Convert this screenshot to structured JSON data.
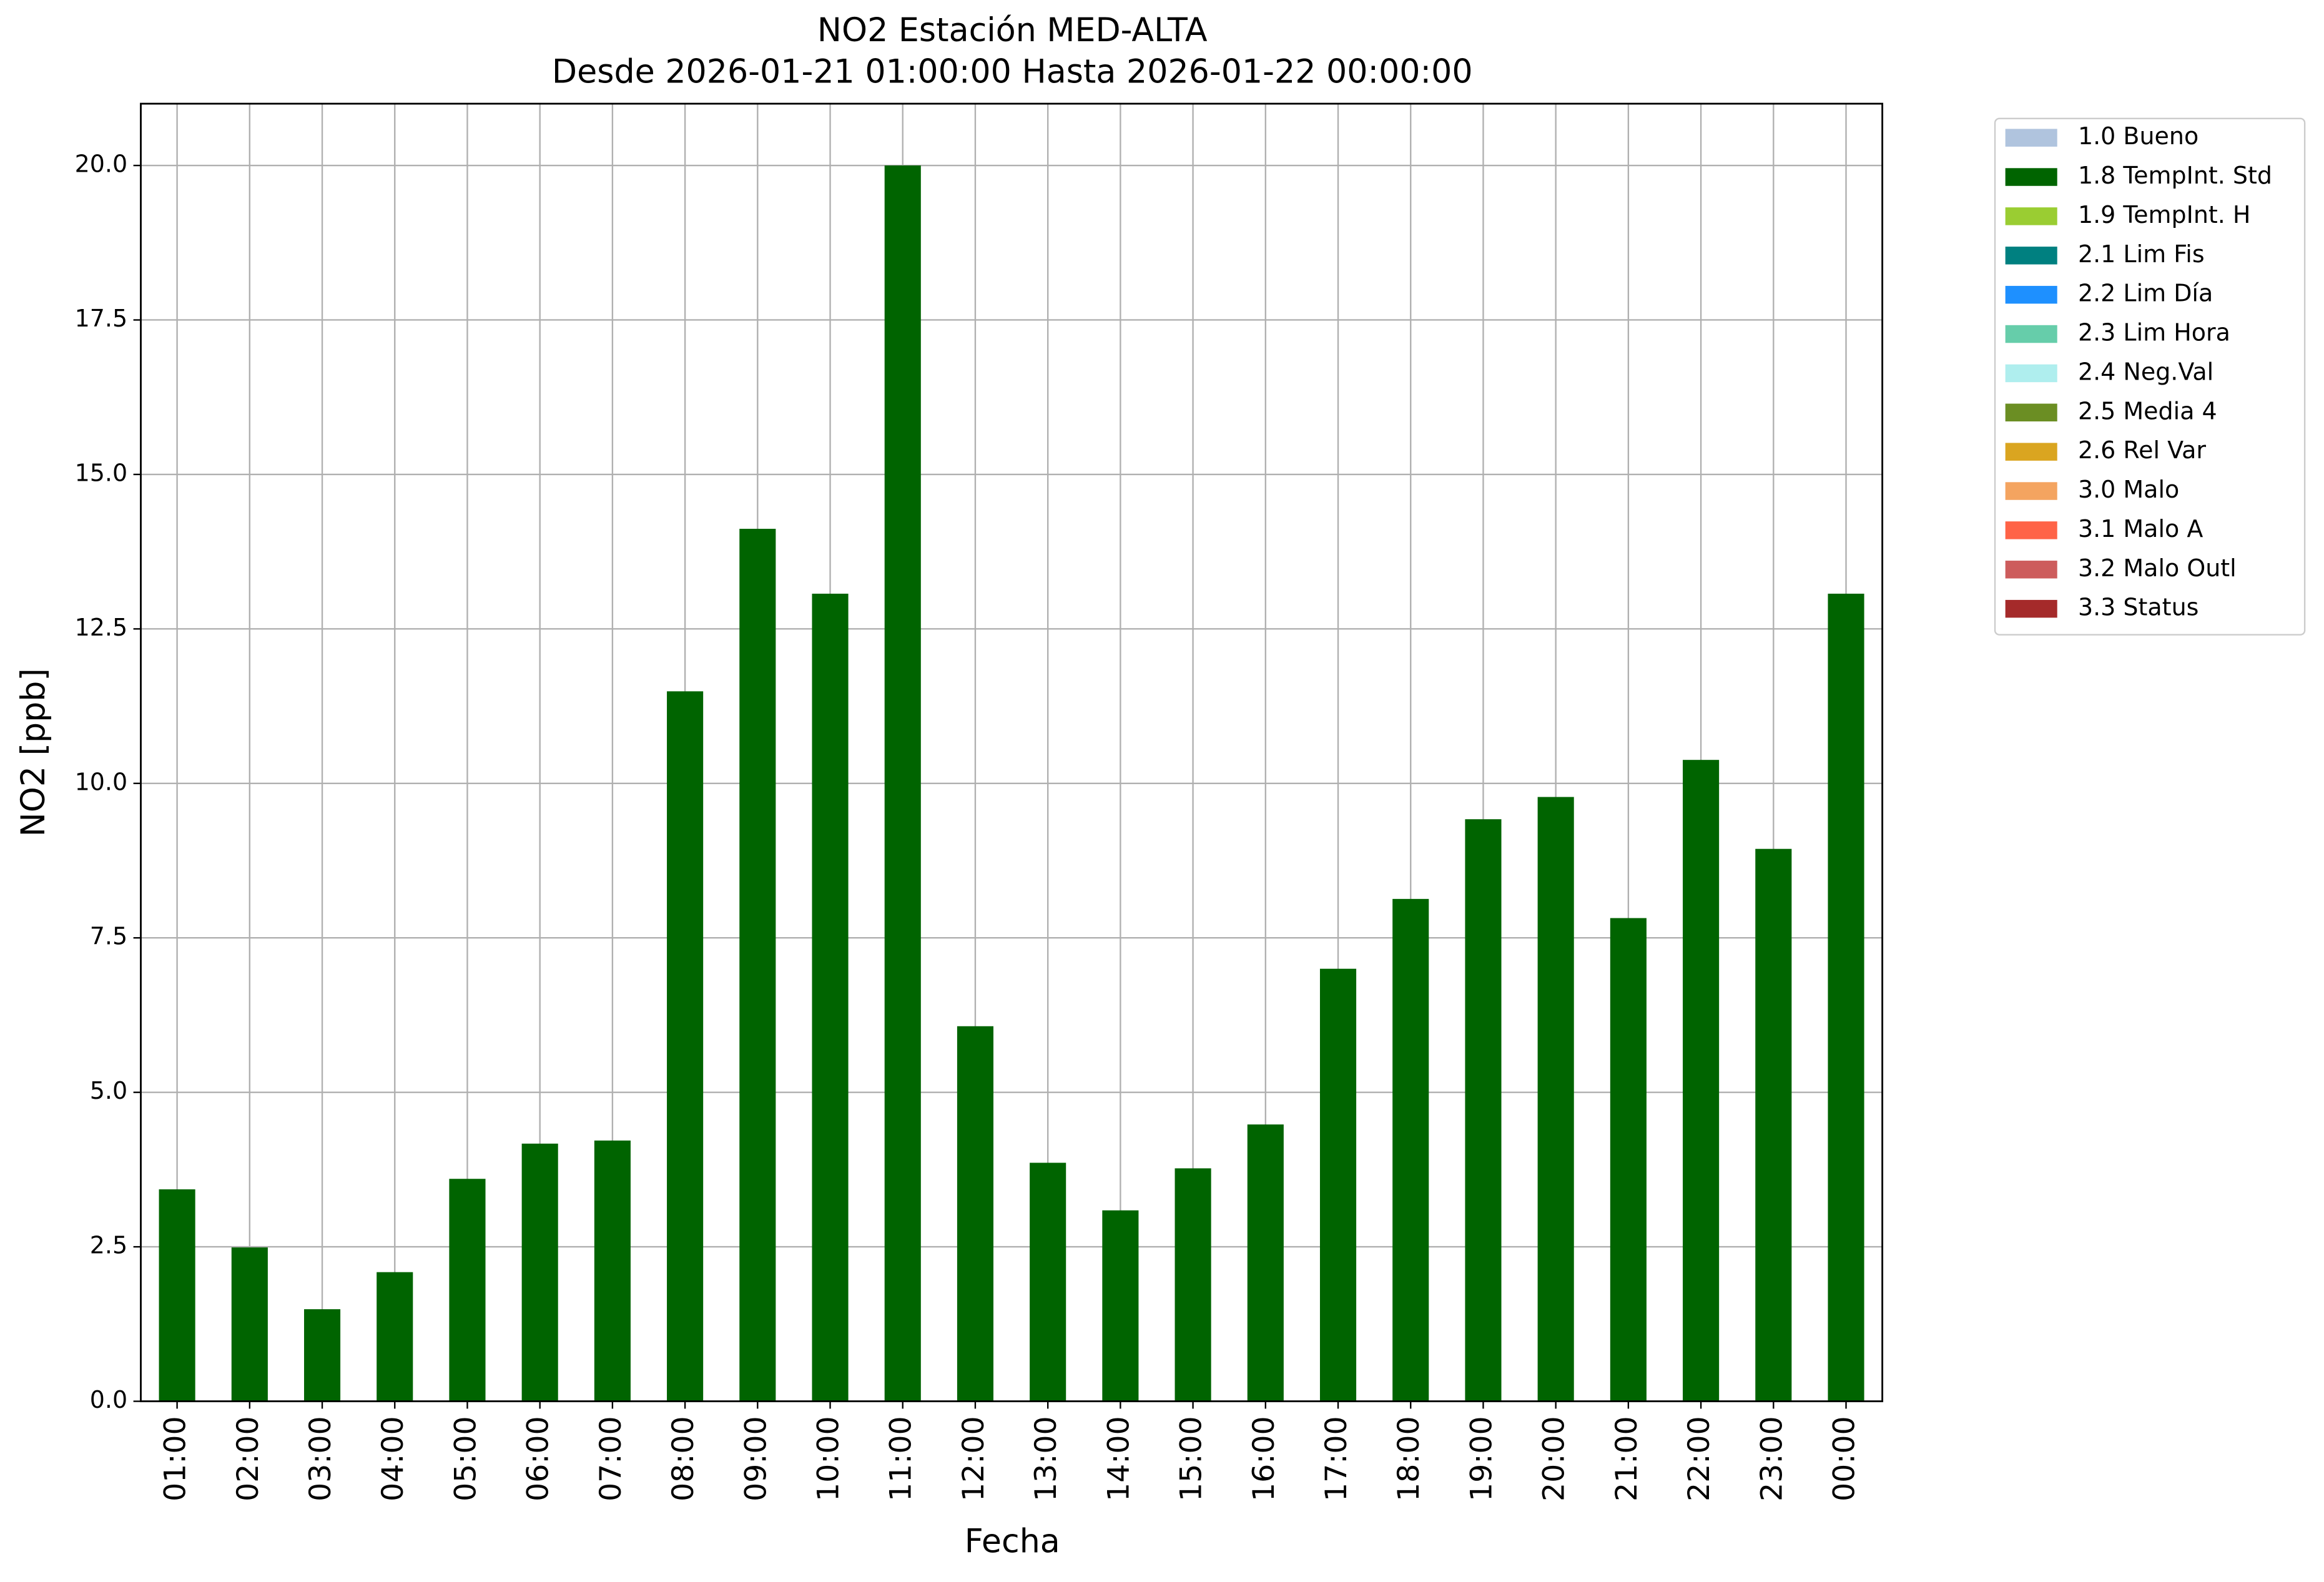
{
  "chart_data": {
    "type": "bar",
    "title": "NO2 Estación MED-ALTA",
    "subtitle": "Desde 2026-01-21 01:00:00 Hasta 2026-01-22 00:00:00",
    "x_label": "Fecha",
    "y_label": "NO2 [ppb]",
    "categories": [
      "01:00",
      "02:00",
      "03:00",
      "04:00",
      "05:00",
      "06:00",
      "07:00",
      "08:00",
      "09:00",
      "10:00",
      "11:00",
      "12:00",
      "13:00",
      "14:00",
      "15:00",
      "16:00",
      "17:00",
      "18:00",
      "19:00",
      "20:00",
      "21:00",
      "22:00",
      "23:00",
      "00:00"
    ],
    "series": [
      {
        "name": "1.0 Bueno",
        "color": "#b0c4de"
      },
      {
        "name": "1.8 TempInt. Std",
        "color": "#006400",
        "values": [
          3.43,
          2.49,
          1.49,
          2.09,
          3.6,
          4.17,
          4.22,
          11.49,
          14.12,
          13.07,
          20.0,
          6.07,
          3.86,
          3.09,
          3.77,
          4.48,
          7.0,
          8.13,
          9.42,
          9.78,
          7.82,
          10.38,
          8.94,
          13.07
        ]
      },
      {
        "name": "1.9 TempInt. H",
        "color": "#9acd32"
      },
      {
        "name": "2.1 Lim Fis",
        "color": "#008080"
      },
      {
        "name": "2.2 Lim Día",
        "color": "#1e90ff"
      },
      {
        "name": "2.3 Lim Hora",
        "color": "#66cdaa"
      },
      {
        "name": "2.4 Neg.Val",
        "color": "#afeeee"
      },
      {
        "name": "2.5 Media 4",
        "color": "#6b8e23"
      },
      {
        "name": "2.6 Rel Var",
        "color": "#daa520"
      },
      {
        "name": "3.0 Malo",
        "color": "#f4a460"
      },
      {
        "name": "3.1 Malo A",
        "color": "#ff6347"
      },
      {
        "name": "3.2 Malo Outl",
        "color": "#cd5c5c"
      },
      {
        "name": "3.3 Status",
        "color": "#a52a2a"
      }
    ],
    "ylim": [
      0,
      21
    ],
    "yticks": [
      {
        "value": 0,
        "label": "0.0"
      },
      2.5,
      {
        "value": 5,
        "label": "5.0"
      },
      7.5,
      {
        "value": 10,
        "label": "10.0"
      },
      12.5,
      {
        "value": 15,
        "label": "15.0"
      },
      17.5,
      {
        "value": 20,
        "label": "20.0"
      }
    ],
    "grid": true,
    "legend": "outside-upper-right"
  }
}
